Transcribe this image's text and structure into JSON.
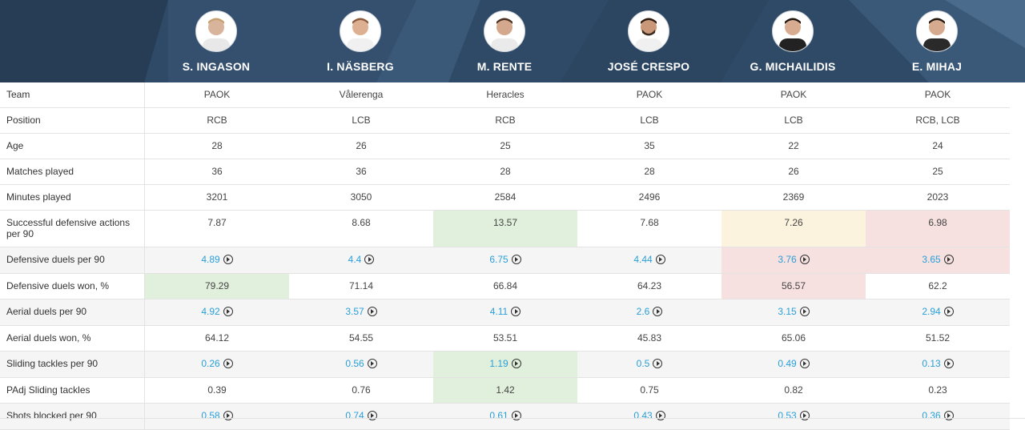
{
  "players": [
    {
      "name": "S. INGASON"
    },
    {
      "name": "I. NÄSBERG"
    },
    {
      "name": "M. RENTE"
    },
    {
      "name": "JOSÉ CRESPO"
    },
    {
      "name": "G. MICHAILIDIS"
    },
    {
      "name": "E. MIHAJ"
    }
  ],
  "rows": [
    {
      "label": "Team",
      "values": [
        "PAOK",
        "Vålerenga",
        "Heracles",
        "PAOK",
        "PAOK",
        "PAOK"
      ],
      "video": false
    },
    {
      "label": "Position",
      "values": [
        "RCB",
        "LCB",
        "RCB",
        "LCB",
        "LCB",
        "RCB, LCB"
      ],
      "video": false
    },
    {
      "label": "Age",
      "values": [
        "28",
        "26",
        "25",
        "35",
        "22",
        "24"
      ],
      "video": false
    },
    {
      "label": "Matches played",
      "values": [
        "36",
        "36",
        "28",
        "28",
        "26",
        "25"
      ],
      "video": false
    },
    {
      "label": "Minutes played",
      "values": [
        "3201",
        "3050",
        "2584",
        "2496",
        "2369",
        "2023"
      ],
      "video": false
    },
    {
      "label": "Successful defensive actions per 90",
      "values": [
        "7.87",
        "8.68",
        "13.57",
        "7.68",
        "7.26",
        "6.98"
      ],
      "video": false
    },
    {
      "label": "Defensive duels per 90",
      "values": [
        "4.89",
        "4.4",
        "6.75",
        "4.44",
        "3.76",
        "3.65"
      ],
      "video": true
    },
    {
      "label": "Defensive duels won, %",
      "values": [
        "79.29",
        "71.14",
        "66.84",
        "64.23",
        "56.57",
        "62.2"
      ],
      "video": false
    },
    {
      "label": "Aerial duels per 90",
      "values": [
        "4.92",
        "3.57",
        "4.11",
        "2.6",
        "3.15",
        "2.94"
      ],
      "video": true
    },
    {
      "label": "Aerial duels won, %",
      "values": [
        "64.12",
        "54.55",
        "53.51",
        "45.83",
        "65.06",
        "51.52"
      ],
      "video": false
    },
    {
      "label": "Sliding tackles per 90",
      "values": [
        "0.26",
        "0.56",
        "1.19",
        "0.5",
        "0.49",
        "0.13"
      ],
      "video": true
    },
    {
      "label": "PAdj Sliding tackles",
      "values": [
        "0.39",
        "0.76",
        "1.42",
        "0.75",
        "0.82",
        "0.23"
      ],
      "video": false
    },
    {
      "label": "Shots blocked per 90",
      "values": [
        "0.58",
        "0.74",
        "0.61",
        "0.43",
        "0.53",
        "0.36"
      ],
      "video": true
    }
  ],
  "colors": {
    "header_bg": "#2f4a66",
    "link": "#2a9fd8",
    "green": "#e1f0dc",
    "yellow": "#fbf3de",
    "red": "#f6e0e0"
  }
}
